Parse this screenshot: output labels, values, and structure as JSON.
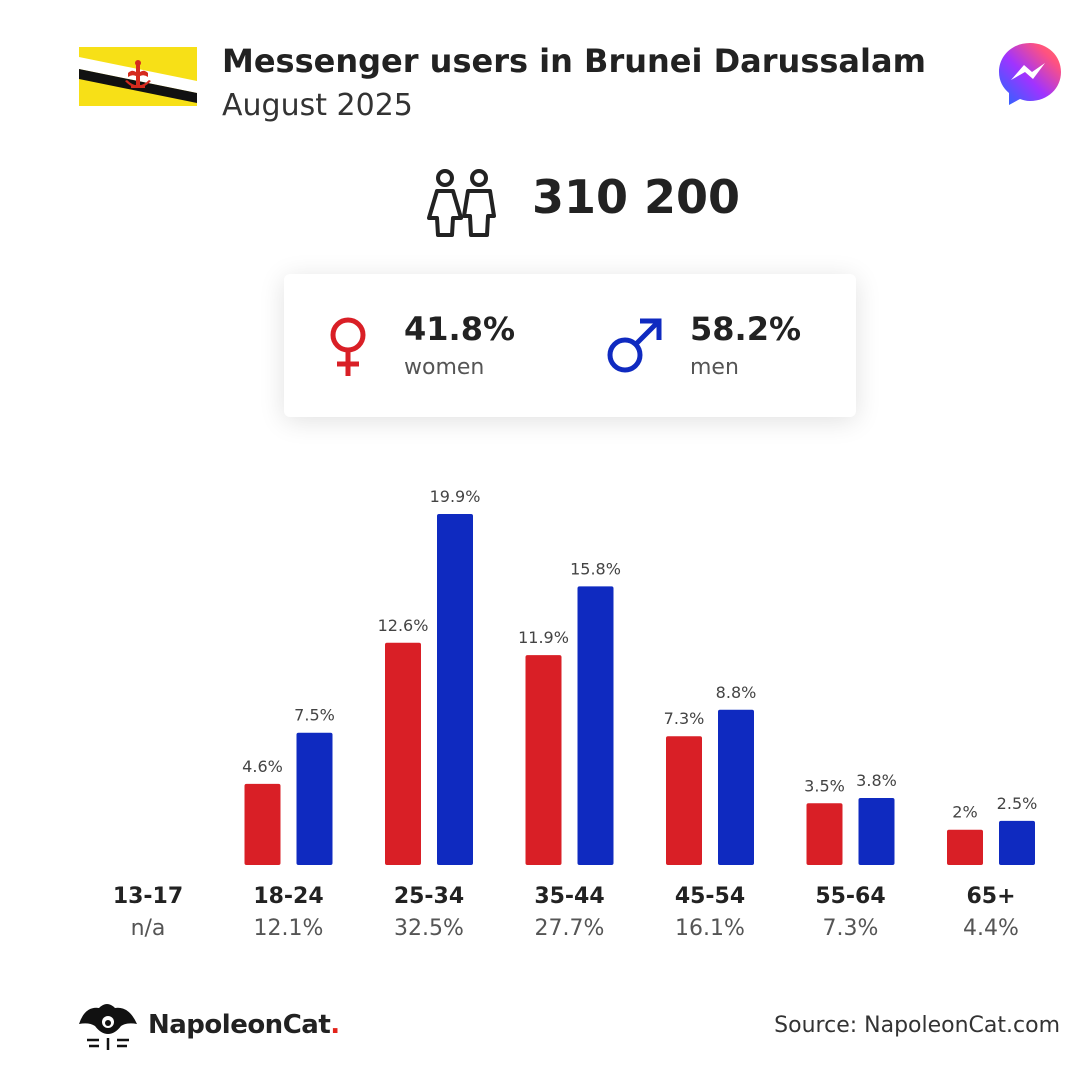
{
  "header": {
    "title": "Messenger users in Brunei Darussalam",
    "subtitle": "August 2025"
  },
  "total": {
    "value": "310 200"
  },
  "gender": {
    "women": {
      "pct": "41.8%",
      "label": "women",
      "color": "#d91f26"
    },
    "men": {
      "pct": "58.2%",
      "label": "men",
      "color": "#0f2ac0"
    }
  },
  "age_groups": [
    {
      "label": "13-17",
      "share": "n/a"
    },
    {
      "label": "18-24",
      "share": "12.1%"
    },
    {
      "label": "25-34",
      "share": "32.5%"
    },
    {
      "label": "35-44",
      "share": "27.7%"
    },
    {
      "label": "45-54",
      "share": "16.1%"
    },
    {
      "label": "55-64",
      "share": "7.3%"
    },
    {
      "label": "65+",
      "share": "4.4%"
    }
  ],
  "chart_data": {
    "type": "bar",
    "categories": [
      "13-17",
      "18-24",
      "25-34",
      "35-44",
      "45-54",
      "55-64",
      "65+"
    ],
    "series": [
      {
        "name": "women",
        "color": "#d91f26",
        "values": [
          null,
          4.6,
          12.6,
          11.9,
          7.3,
          3.5,
          2
        ],
        "labels": [
          "",
          "4.6%",
          "12.6%",
          "11.9%",
          "7.3%",
          "3.5%",
          "2%"
        ]
      },
      {
        "name": "men",
        "color": "#0f2ac0",
        "values": [
          null,
          7.5,
          19.9,
          15.8,
          8.8,
          3.8,
          2.5
        ],
        "labels": [
          "",
          "7.5%",
          "19.9%",
          "15.8%",
          "8.8%",
          "3.8%",
          "2.5%"
        ]
      }
    ],
    "ylim": [
      0,
      19.9
    ]
  },
  "footer": {
    "brand": "NapoleonCat",
    "brand_dot": ".",
    "source": "Source: NapoleonCat.com"
  }
}
